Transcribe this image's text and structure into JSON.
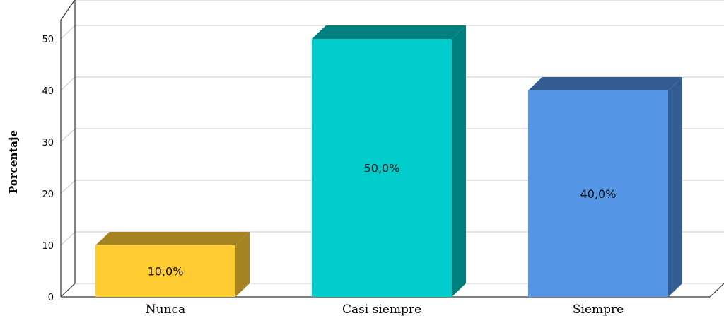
{
  "chart_data": {
    "type": "bar",
    "style": "3d",
    "categories": [
      "Nunca",
      "Casi siempre",
      "Siempre"
    ],
    "values": [
      10,
      50,
      40
    ],
    "data_labels": [
      "10,0%",
      "50,0%",
      "40,0%"
    ],
    "colors": {
      "front": [
        "#fecb30",
        "#00cccc",
        "#5595e5"
      ],
      "top": [
        "#a58320",
        "#007f7f",
        "#335d92"
      ],
      "side": [
        "#a58320",
        "#007f7f",
        "#335d92"
      ],
      "grid": "#c8c8c8",
      "axis": "#333333"
    },
    "ylabel": "Porcentaje",
    "xlabel": "",
    "title": "",
    "yticks": [
      "0",
      "10",
      "20",
      "30",
      "40",
      "50"
    ],
    "ylim": [
      0,
      55
    ],
    "grid": true
  }
}
